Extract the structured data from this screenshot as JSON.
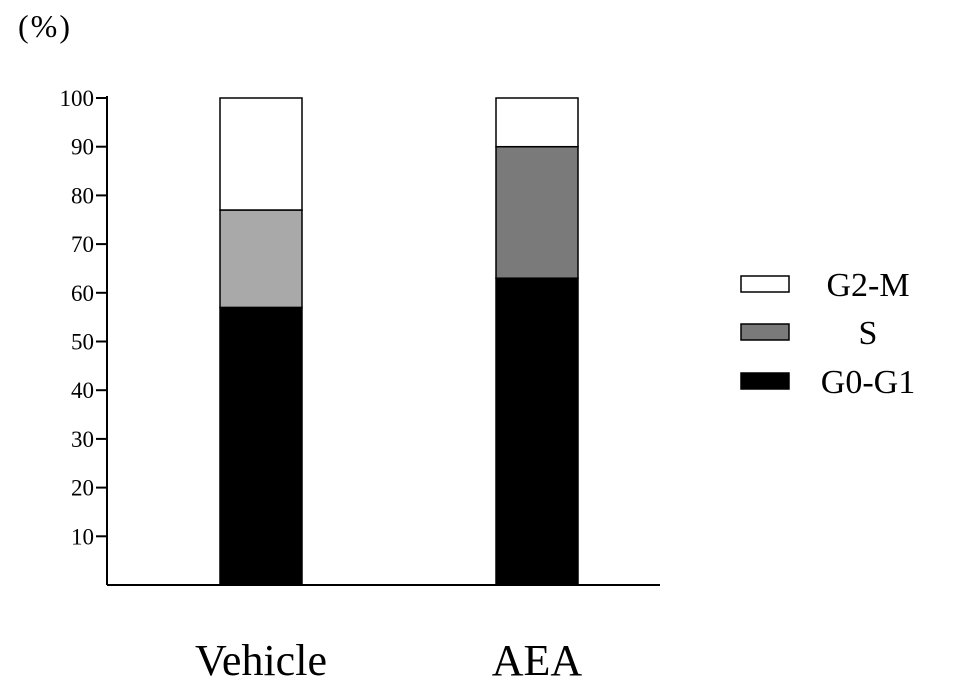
{
  "chart_data": {
    "type": "bar",
    "stacked": true,
    "title": "",
    "xlabel": "",
    "ylabel": "(%)",
    "ylim": [
      0,
      100
    ],
    "yticks": [
      10,
      20,
      30,
      40,
      50,
      60,
      70,
      80,
      90,
      100
    ],
    "categories": [
      "Vehicle",
      "AEA"
    ],
    "series": [
      {
        "name": "G0-G1",
        "values": [
          57,
          63
        ],
        "color": "#000000"
      },
      {
        "name": "S",
        "values": [
          20,
          27
        ],
        "color_by_category": [
          "#a9a9a9",
          "#7a7a7a"
        ]
      },
      {
        "name": "G2-M",
        "values": [
          23,
          10
        ],
        "color": "#ffffff"
      }
    ],
    "legend": {
      "placement": "right",
      "order": [
        "G2-M",
        "S",
        "G0-G1"
      ]
    },
    "grid": false
  }
}
